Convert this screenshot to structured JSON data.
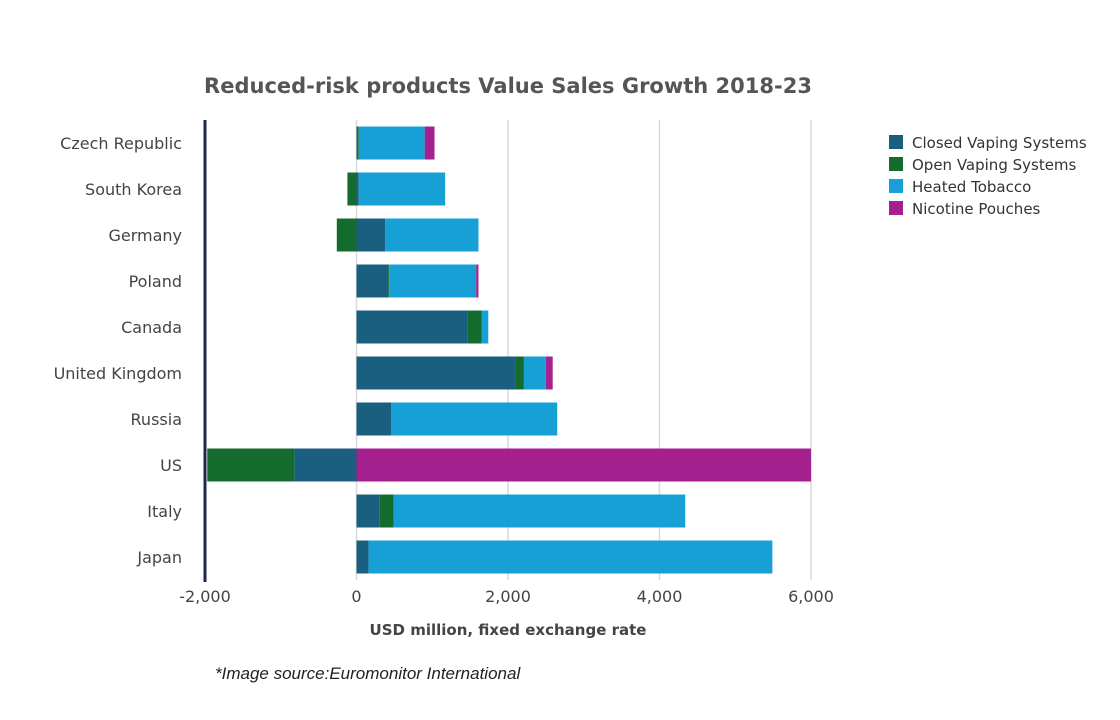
{
  "chart_data": {
    "type": "bar",
    "orientation": "horizontal",
    "stacked": true,
    "title": "Reduced-risk products Value Sales Growth 2018-23",
    "xlabel": "USD million, fixed exchange rate",
    "ylabel": "",
    "xlim": [
      -2000,
      6000
    ],
    "x_ticks": [
      -2000,
      0,
      2000,
      4000,
      6000
    ],
    "x_tick_labels": [
      "-2,000",
      "0",
      "2,000",
      "4,000",
      "6,000"
    ],
    "grid": "vertical",
    "legend_position": "right",
    "categories": [
      "Czech Republic",
      "South Korea",
      "Germany",
      "Poland",
      "Canada",
      "United Kingdom",
      "Russia",
      "US",
      "Italy",
      "Japan"
    ],
    "series": [
      {
        "name": "Closed Vaping Systems",
        "color": "#1a5e80",
        "values": [
          20,
          30,
          380,
          420,
          1470,
          2100,
          460,
          -820,
          300,
          160
        ]
      },
      {
        "name": "Open Vaping Systems",
        "color": "#146b2e",
        "values": [
          10,
          -120,
          -260,
          10,
          180,
          110,
          0,
          -1150,
          190,
          0
        ]
      },
      {
        "name": "Heated Tobacco",
        "color": "#17a0d6",
        "values": [
          870,
          1140,
          1230,
          1150,
          90,
          290,
          2190,
          0,
          3850,
          5330
        ]
      },
      {
        "name": "Nicotine Pouches",
        "color": "#a4218f",
        "values": [
          130,
          0,
          0,
          30,
          0,
          90,
          0,
          6000,
          0,
          0
        ]
      }
    ]
  },
  "source_note": "*Image source:Euromonitor International"
}
